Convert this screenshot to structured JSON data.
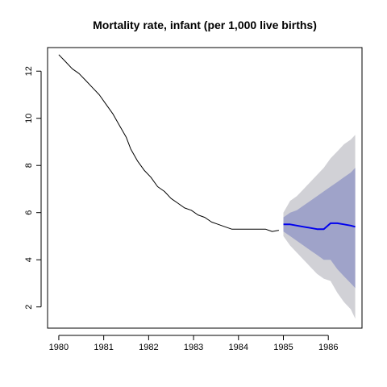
{
  "chart_data": {
    "type": "line",
    "title": "Mortality rate, infant (per 1,000 live births)",
    "xlabel": "",
    "ylabel": "",
    "xlim": [
      1979.75,
      1986.75
    ],
    "ylim": [
      1.1,
      13.0
    ],
    "x_ticks": [
      1980,
      1981,
      1982,
      1983,
      1984,
      1985,
      1986
    ],
    "x_tick_labels": [
      "1980",
      "1981",
      "1982",
      "1983",
      "1984",
      "1985",
      "1986"
    ],
    "y_ticks": [
      2,
      4,
      6,
      8,
      10,
      12
    ],
    "y_tick_labels": [
      "2",
      "4",
      "6",
      "8",
      "10",
      "12"
    ],
    "grid": false,
    "legend": "none",
    "series": [
      {
        "role": "history",
        "color": "#000000",
        "x": [
          1980.0,
          1980.15,
          1980.3,
          1980.45,
          1980.6,
          1980.75,
          1980.9,
          1981.05,
          1981.2,
          1981.35,
          1981.5,
          1981.6,
          1981.75,
          1981.9,
          1982.05,
          1982.2,
          1982.35,
          1982.5,
          1982.65,
          1982.8,
          1982.95,
          1983.1,
          1983.25,
          1983.4,
          1983.55,
          1983.7,
          1983.85,
          1984.0,
          1984.2,
          1984.4,
          1984.6,
          1984.75,
          1984.9
        ],
        "y": [
          12.7,
          12.4,
          12.1,
          11.9,
          11.6,
          11.3,
          11.0,
          10.6,
          10.2,
          9.7,
          9.2,
          8.7,
          8.2,
          7.8,
          7.5,
          7.1,
          6.9,
          6.6,
          6.4,
          6.2,
          6.1,
          5.9,
          5.8,
          5.6,
          5.5,
          5.4,
          5.3,
          5.3,
          5.3,
          5.3,
          5.3,
          5.2,
          5.25
        ]
      },
      {
        "role": "forecast",
        "color": "#0000ee",
        "x": [
          1985.0,
          1985.15,
          1985.3,
          1985.45,
          1985.6,
          1985.75,
          1985.9,
          1986.05,
          1986.2,
          1986.35,
          1986.5,
          1986.6
        ],
        "y": [
          5.5,
          5.5,
          5.45,
          5.4,
          5.35,
          5.3,
          5.3,
          5.55,
          5.55,
          5.5,
          5.45,
          5.4
        ]
      }
    ],
    "bands": [
      {
        "role": "outer-interval",
        "color": "#d1d1d6",
        "x": [
          1985.0,
          1985.15,
          1985.3,
          1985.45,
          1985.6,
          1985.75,
          1985.9,
          1986.05,
          1986.2,
          1986.35,
          1986.5,
          1986.6
        ],
        "lower": [
          5.0,
          4.6,
          4.3,
          4.0,
          3.7,
          3.4,
          3.2,
          3.1,
          2.6,
          2.2,
          1.9,
          1.5
        ],
        "upper": [
          6.0,
          6.5,
          6.7,
          7.0,
          7.3,
          7.6,
          7.9,
          8.3,
          8.6,
          8.9,
          9.1,
          9.3
        ]
      },
      {
        "role": "inner-interval",
        "color": "#9fa3c9",
        "x": [
          1985.0,
          1985.15,
          1985.3,
          1985.45,
          1985.6,
          1985.75,
          1985.9,
          1986.05,
          1986.2,
          1986.35,
          1986.5,
          1986.6
        ],
        "lower": [
          5.2,
          5.0,
          4.8,
          4.6,
          4.4,
          4.2,
          4.0,
          4.0,
          3.6,
          3.3,
          3.0,
          2.8
        ],
        "upper": [
          5.8,
          6.0,
          6.1,
          6.3,
          6.5,
          6.7,
          6.9,
          7.1,
          7.3,
          7.5,
          7.7,
          7.9
        ]
      }
    ]
  }
}
